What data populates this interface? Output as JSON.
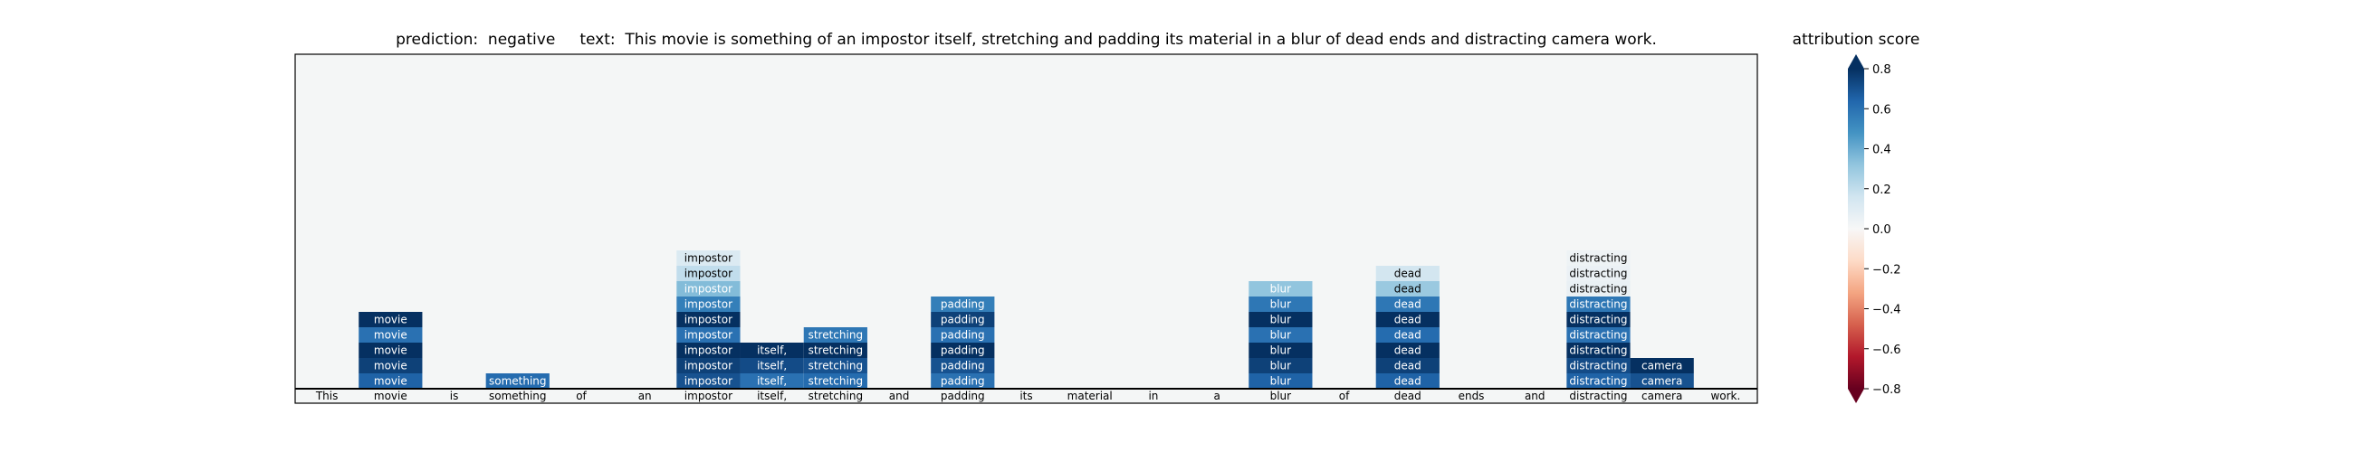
{
  "chart_data": {
    "type": "heatmap",
    "title": {
      "prediction_label": "prediction:",
      "prediction": "negative",
      "text_label": "text:",
      "text": "This movie is something of an impostor itself, stretching and padding its material in a blur of dead ends and distracting camera work."
    },
    "tokens": [
      "This",
      "movie",
      "is",
      "something",
      "of",
      "an",
      "impostor",
      "itself,",
      "stretching",
      "and",
      "padding",
      "its",
      "material",
      "in",
      "a",
      "blur",
      "of",
      "dead",
      "ends",
      "and",
      "distracting",
      "camera",
      "work."
    ],
    "rows": 20,
    "cells": [
      {
        "token": 1,
        "level": 0,
        "text": "movie",
        "value": 0.65
      },
      {
        "token": 1,
        "level": 1,
        "text": "movie",
        "value": 0.75
      },
      {
        "token": 1,
        "level": 2,
        "text": "movie",
        "value": 0.85
      },
      {
        "token": 1,
        "level": 3,
        "text": "movie",
        "value": 0.6
      },
      {
        "token": 1,
        "level": 4,
        "text": "movie",
        "value": 0.82
      },
      {
        "token": 3,
        "level": 0,
        "text": "something",
        "value": 0.62
      },
      {
        "token": 6,
        "level": 0,
        "text": "impostor",
        "value": 0.7
      },
      {
        "token": 6,
        "level": 1,
        "text": "impostor",
        "value": 0.75
      },
      {
        "token": 6,
        "level": 2,
        "text": "impostor",
        "value": 0.85
      },
      {
        "token": 6,
        "level": 3,
        "text": "impostor",
        "value": 0.6
      },
      {
        "token": 6,
        "level": 4,
        "text": "impostor",
        "value": 0.82
      },
      {
        "token": 6,
        "level": 5,
        "text": "impostor",
        "value": 0.55
      },
      {
        "token": 6,
        "level": 6,
        "text": "impostor",
        "value": 0.35
      },
      {
        "token": 6,
        "level": 7,
        "text": "impostor",
        "value": 0.2
      },
      {
        "token": 6,
        "level": 8,
        "text": "impostor",
        "value": 0.12
      },
      {
        "token": 7,
        "level": 0,
        "text": "itself,",
        "value": 0.6
      },
      {
        "token": 7,
        "level": 1,
        "text": "itself,",
        "value": 0.72
      },
      {
        "token": 7,
        "level": 2,
        "text": "itself,",
        "value": 0.85
      },
      {
        "token": 8,
        "level": 0,
        "text": "stretching",
        "value": 0.62
      },
      {
        "token": 8,
        "level": 1,
        "text": "stretching",
        "value": 0.7
      },
      {
        "token": 8,
        "level": 2,
        "text": "stretching",
        "value": 0.85
      },
      {
        "token": 8,
        "level": 3,
        "text": "stretching",
        "value": 0.58
      },
      {
        "token": 10,
        "level": 0,
        "text": "padding",
        "value": 0.6
      },
      {
        "token": 10,
        "level": 1,
        "text": "padding",
        "value": 0.7
      },
      {
        "token": 10,
        "level": 2,
        "text": "padding",
        "value": 0.8
      },
      {
        "token": 10,
        "level": 3,
        "text": "padding",
        "value": 0.6
      },
      {
        "token": 10,
        "level": 4,
        "text": "padding",
        "value": 0.75
      },
      {
        "token": 10,
        "level": 5,
        "text": "padding",
        "value": 0.55
      },
      {
        "token": 15,
        "level": 0,
        "text": "blur",
        "value": 0.65
      },
      {
        "token": 15,
        "level": 1,
        "text": "blur",
        "value": 0.75
      },
      {
        "token": 15,
        "level": 2,
        "text": "blur",
        "value": 0.85
      },
      {
        "token": 15,
        "level": 3,
        "text": "blur",
        "value": 0.6
      },
      {
        "token": 15,
        "level": 4,
        "text": "blur",
        "value": 0.8
      },
      {
        "token": 15,
        "level": 5,
        "text": "blur",
        "value": 0.58
      },
      {
        "token": 15,
        "level": 6,
        "text": "blur",
        "value": 0.32
      },
      {
        "token": 17,
        "level": 0,
        "text": "dead",
        "value": 0.65
      },
      {
        "token": 17,
        "level": 1,
        "text": "dead",
        "value": 0.75
      },
      {
        "token": 17,
        "level": 2,
        "text": "dead",
        "value": 0.88
      },
      {
        "token": 17,
        "level": 3,
        "text": "dead",
        "value": 0.62
      },
      {
        "token": 17,
        "level": 4,
        "text": "dead",
        "value": 0.85
      },
      {
        "token": 17,
        "level": 5,
        "text": "dead",
        "value": 0.58
      },
      {
        "token": 17,
        "level": 6,
        "text": "dead",
        "value": 0.3
      },
      {
        "token": 17,
        "level": 7,
        "text": "dead",
        "value": 0.15
      },
      {
        "token": 20,
        "level": 0,
        "text": "distracting",
        "value": 0.65
      },
      {
        "token": 20,
        "level": 1,
        "text": "distracting",
        "value": 0.72
      },
      {
        "token": 20,
        "level": 2,
        "text": "distracting",
        "value": 0.85
      },
      {
        "token": 20,
        "level": 3,
        "text": "distracting",
        "value": 0.6
      },
      {
        "token": 20,
        "level": 4,
        "text": "distracting",
        "value": 0.8
      },
      {
        "token": 20,
        "level": 5,
        "text": "distracting",
        "value": 0.58
      },
      {
        "token": 20,
        "level": 6,
        "text": "distracting",
        "value": 0.06
      },
      {
        "token": 20,
        "level": 7,
        "text": "distracting",
        "value": 0.05
      },
      {
        "token": 20,
        "level": 8,
        "text": "distracting",
        "value": 0.04
      },
      {
        "token": 21,
        "level": 0,
        "text": "camera",
        "value": 0.7
      },
      {
        "token": 21,
        "level": 1,
        "text": "camera",
        "value": 0.85
      }
    ],
    "colorbar": {
      "title": "attribution score",
      "colormap": "RdBu",
      "range": [
        -0.8,
        0.8
      ],
      "ticks": [
        0.8,
        0.6,
        0.4,
        0.2,
        0.0,
        -0.2,
        -0.4,
        -0.6,
        -0.8
      ],
      "tick_labels": [
        "0.8",
        "0.6",
        "0.4",
        "0.2",
        "0.0",
        "−0.2",
        "−0.4",
        "−0.6",
        "−0.8"
      ],
      "extend": "both"
    },
    "background_color": "#f4f6f6"
  }
}
